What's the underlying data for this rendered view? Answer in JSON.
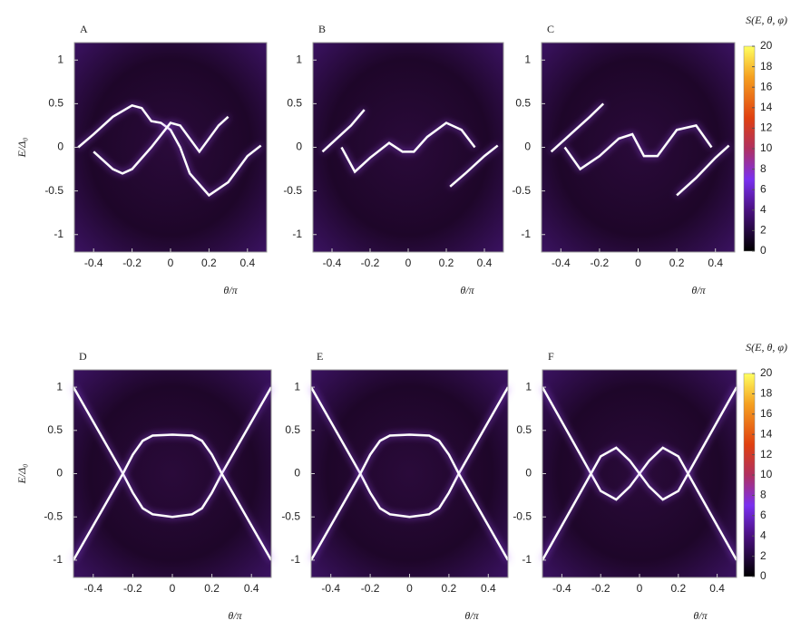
{
  "chart_data": [
    {
      "type": "heatmap",
      "title": "A",
      "ylabel": "E/Δ₀",
      "xlabel": "θ/π",
      "xlim": [
        -0.5,
        0.5
      ],
      "ylim": [
        -1.2,
        1.2
      ],
      "xticks": [
        -0.4,
        -0.2,
        0,
        0.2,
        0.4
      ],
      "yticks": [
        1,
        0.5,
        0,
        -0.5,
        -1
      ],
      "series": [
        {
          "color": "#ffffff",
          "x": [
            -0.48,
            -0.4,
            -0.3,
            -0.2,
            -0.15,
            -0.1,
            -0.05,
            0,
            0.05,
            0.1,
            0.2,
            0.3,
            0.4,
            0.47
          ],
          "values": [
            0,
            0.15,
            0.35,
            0.48,
            0.45,
            0.3,
            0.28,
            0.2,
            0,
            -0.3,
            -0.55,
            -0.4,
            -0.1,
            0.02
          ]
        },
        {
          "color": "#ffffff",
          "x": [
            -0.4,
            -0.3,
            -0.25,
            -0.2,
            -0.1,
            0,
            0.05,
            0.1,
            0.15,
            0.25,
            0.3
          ],
          "values": [
            -0.05,
            -0.25,
            -0.3,
            -0.25,
            0,
            0.28,
            0.25,
            0.1,
            -0.05,
            0.25,
            0.35
          ]
        }
      ]
    },
    {
      "type": "heatmap",
      "title": "B",
      "xlabel": "θ/π",
      "xlim": [
        -0.5,
        0.5
      ],
      "ylim": [
        -1.2,
        1.2
      ],
      "xticks": [
        -0.4,
        -0.2,
        0,
        0.2,
        0.4
      ],
      "yticks": [
        1,
        0.5,
        0,
        -0.5,
        -1
      ],
      "series": [
        {
          "color": "#ffffff",
          "x": [
            -0.45,
            -0.4,
            -0.3,
            -0.23
          ],
          "values": [
            -0.05,
            0.05,
            0.25,
            0.43
          ]
        },
        {
          "color": "#ffffff",
          "x": [
            -0.35,
            -0.28,
            -0.2,
            -0.1,
            -0.03,
            0.03,
            0.1,
            0.2,
            0.28,
            0.35
          ],
          "values": [
            0,
            -0.28,
            -0.12,
            0.05,
            -0.05,
            -0.05,
            0.12,
            0.28,
            0.2,
            0
          ]
        },
        {
          "color": "#ffffff",
          "x": [
            0.22,
            0.3,
            0.4,
            0.47
          ],
          "values": [
            -0.45,
            -0.3,
            -0.1,
            0.02
          ]
        }
      ]
    },
    {
      "type": "heatmap",
      "title": "C",
      "xlabel": "θ/π",
      "xlim": [
        -0.5,
        0.5
      ],
      "ylim": [
        -1.2,
        1.2
      ],
      "xticks": [
        -0.4,
        -0.2,
        0,
        0.2,
        0.4
      ],
      "yticks": [
        1,
        0.5,
        0,
        -0.5,
        -1
      ],
      "zlabel": "S(E, θ, φ)",
      "zlim": [
        0,
        20
      ],
      "zticks": [
        0,
        2,
        4,
        6,
        8,
        10,
        12,
        14,
        16,
        18,
        20
      ],
      "series": [
        {
          "color": "#ffffff",
          "x": [
            -0.45,
            -0.35,
            -0.25,
            -0.18
          ],
          "values": [
            -0.05,
            0.15,
            0.35,
            0.5
          ]
        },
        {
          "color": "#ffffff",
          "x": [
            -0.38,
            -0.3,
            -0.2,
            -0.1,
            -0.03,
            0.03,
            0.1,
            0.2,
            0.3,
            0.38
          ],
          "values": [
            0,
            -0.25,
            -0.1,
            0.1,
            0.15,
            -0.1,
            -0.1,
            0.2,
            0.25,
            0
          ]
        },
        {
          "color": "#ffffff",
          "x": [
            0.2,
            0.3,
            0.4,
            0.47
          ],
          "values": [
            -0.55,
            -0.35,
            -0.12,
            0.02
          ]
        }
      ]
    },
    {
      "type": "heatmap",
      "title": "D",
      "ylabel": "E/Δ₀",
      "xlabel": "θ/π",
      "xlim": [
        -0.5,
        0.5
      ],
      "ylim": [
        -1.2,
        1.2
      ],
      "xticks": [
        -0.4,
        -0.2,
        0,
        0.2,
        0.4
      ],
      "yticks": [
        1,
        0.5,
        0,
        -0.5,
        -1
      ],
      "series": [
        {
          "color": "#ffffff",
          "x": [
            -0.5,
            -0.4,
            -0.3,
            -0.25,
            -0.2,
            -0.15,
            -0.1,
            0,
            0.1,
            0.15,
            0.2,
            0.25,
            0.3,
            0.4,
            0.5
          ],
          "values": [
            1,
            0.6,
            0.2,
            0,
            -0.22,
            -0.4,
            -0.47,
            -0.5,
            -0.47,
            -0.4,
            -0.22,
            0,
            0.2,
            0.6,
            1
          ]
        },
        {
          "color": "#ffffff",
          "x": [
            -0.5,
            -0.4,
            -0.3,
            -0.25,
            -0.2,
            -0.15,
            -0.1,
            0,
            0.1,
            0.15,
            0.2,
            0.25,
            0.3,
            0.4,
            0.5
          ],
          "values": [
            -1,
            -0.6,
            -0.2,
            0,
            0.22,
            0.38,
            0.44,
            0.45,
            0.44,
            0.38,
            0.22,
            0,
            -0.2,
            -0.6,
            -1
          ]
        }
      ]
    },
    {
      "type": "heatmap",
      "title": "E",
      "xlabel": "θ/π",
      "xlim": [
        -0.5,
        0.5
      ],
      "ylim": [
        -1.2,
        1.2
      ],
      "xticks": [
        -0.4,
        -0.2,
        0,
        0.2,
        0.4
      ],
      "yticks": [
        1,
        0.5,
        0,
        -0.5,
        -1
      ],
      "series": [
        {
          "color": "#ffffff",
          "x": [
            -0.5,
            -0.4,
            -0.3,
            -0.25,
            -0.2,
            -0.15,
            -0.1,
            0,
            0.1,
            0.15,
            0.2,
            0.25,
            0.3,
            0.4,
            0.5
          ],
          "values": [
            1,
            0.6,
            0.2,
            0,
            -0.22,
            -0.4,
            -0.47,
            -0.5,
            -0.47,
            -0.4,
            -0.22,
            0,
            0.2,
            0.6,
            1
          ]
        },
        {
          "color": "#ffffff",
          "x": [
            -0.5,
            -0.4,
            -0.3,
            -0.25,
            -0.2,
            -0.15,
            -0.1,
            0,
            0.1,
            0.15,
            0.2,
            0.25,
            0.3,
            0.4,
            0.5
          ],
          "values": [
            -1,
            -0.6,
            -0.2,
            0,
            0.22,
            0.38,
            0.44,
            0.45,
            0.44,
            0.38,
            0.22,
            0,
            -0.2,
            -0.6,
            -1
          ]
        }
      ]
    },
    {
      "type": "heatmap",
      "title": "F",
      "xlabel": "θ/π",
      "xlim": [
        -0.5,
        0.5
      ],
      "ylim": [
        -1.2,
        1.2
      ],
      "xticks": [
        -0.4,
        -0.2,
        0,
        0.2,
        0.4
      ],
      "yticks": [
        1,
        0.5,
        0,
        -0.5,
        -1
      ],
      "zlabel": "S(E, θ, φ)",
      "zlim": [
        0,
        20
      ],
      "zticks": [
        0,
        2,
        4,
        6,
        8,
        10,
        12,
        14,
        16,
        18,
        20
      ],
      "series": [
        {
          "color": "#ffffff",
          "x": [
            -0.5,
            -0.4,
            -0.3,
            -0.25,
            -0.2,
            -0.12,
            -0.05,
            0,
            0.05,
            0.12,
            0.2,
            0.25,
            0.3,
            0.4,
            0.5
          ],
          "values": [
            1,
            0.6,
            0.2,
            0,
            -0.2,
            -0.3,
            -0.15,
            0,
            0.15,
            0.3,
            0.2,
            0,
            0.2,
            0.6,
            1
          ]
        },
        {
          "color": "#ffffff",
          "x": [
            -0.5,
            -0.4,
            -0.3,
            -0.25,
            -0.2,
            -0.12,
            -0.05,
            0,
            0.05,
            0.12,
            0.2,
            0.25,
            0.3,
            0.4,
            0.5
          ],
          "values": [
            -1,
            -0.6,
            -0.2,
            0,
            0.2,
            0.3,
            0.15,
            0,
            -0.15,
            -0.3,
            -0.2,
            0,
            -0.2,
            -0.6,
            -1
          ]
        }
      ]
    }
  ]
}
